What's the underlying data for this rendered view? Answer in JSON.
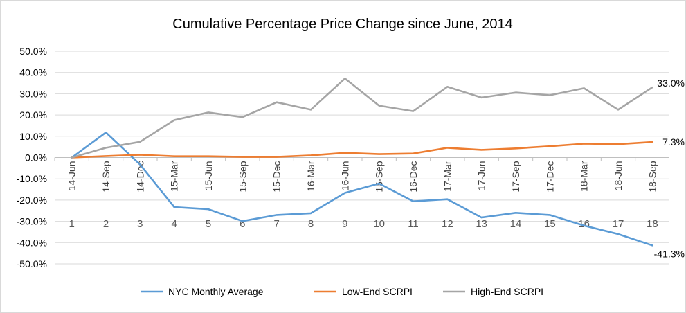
{
  "chart_data": {
    "type": "line",
    "title": "Cumulative Percentage Price Change since June, 2014",
    "categories": [
      "14-Jun",
      "14-Sep",
      "14-Dec",
      "15-Mar",
      "15-Jun",
      "15-Sep",
      "15-Dec",
      "16-Mar",
      "16-Jun",
      "16-Sep",
      "16-Dec",
      "17-Mar",
      "17-Jun",
      "17-Sep",
      "17-Dec",
      "18-Mar",
      "18-Jun",
      "18-Sep"
    ],
    "category_index": [
      "1",
      "2",
      "3",
      "4",
      "5",
      "6",
      "7",
      "8",
      "9",
      "10",
      "11",
      "12",
      "13",
      "14",
      "15",
      "16",
      "17",
      "18"
    ],
    "yticks": [
      "50.0%",
      "40.0%",
      "30.0%",
      "20.0%",
      "10.0%",
      "0.0%",
      "-10.0%",
      "-20.0%",
      "-30.0%",
      "-40.0%",
      "-50.0%"
    ],
    "ylim": [
      -50,
      50
    ],
    "grid": true,
    "legend_position": "bottom",
    "series": [
      {
        "name": "NYC Monthly Average",
        "color": "#5b9bd5",
        "values": [
          0.0,
          11.8,
          -3.3,
          -23.3,
          -24.3,
          -29.9,
          -27.0,
          -26.2,
          -16.6,
          -12.2,
          -20.6,
          -19.6,
          -28.2,
          -26.0,
          -27.0,
          -32.0,
          -36.0,
          -41.3
        ],
        "end_label": "-41.3%"
      },
      {
        "name": "Low-End SCRPI",
        "color": "#ed7d31",
        "values": [
          0.0,
          0.7,
          1.3,
          0.6,
          0.6,
          0.3,
          0.3,
          1.0,
          2.2,
          1.6,
          1.9,
          4.6,
          3.6,
          4.3,
          5.3,
          6.5,
          6.3,
          7.3
        ],
        "end_label": "7.3%"
      },
      {
        "name": "High-End SCRPI",
        "color": "#a5a5a5",
        "values": [
          0.0,
          4.6,
          7.4,
          17.6,
          21.2,
          19.0,
          26.0,
          22.5,
          37.2,
          24.4,
          21.8,
          33.3,
          28.2,
          30.6,
          29.3,
          32.6,
          22.5,
          33.0
        ],
        "end_label": "33.0%"
      }
    ]
  }
}
